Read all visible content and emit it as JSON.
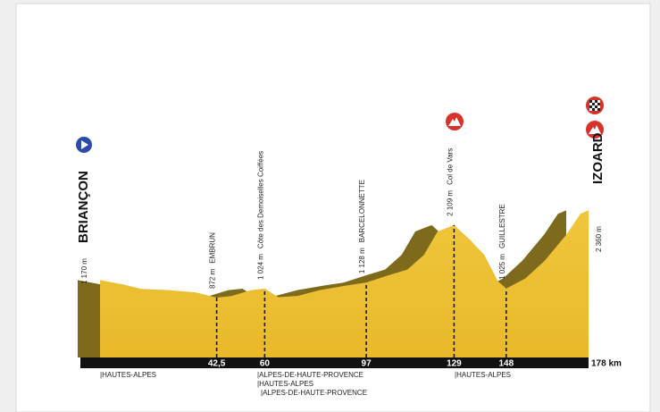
{
  "chart_data": {
    "type": "area",
    "color": "#f0c63c",
    "side_color": "#7d6a1c",
    "x": [
      0,
      8,
      15,
      25,
      35,
      42.5,
      48,
      55,
      60,
      65,
      72,
      80,
      90,
      97,
      105,
      112,
      118,
      123,
      129,
      135,
      140,
      145,
      148,
      155,
      162,
      170,
      175,
      178
    ],
    "values": [
      1170,
      1100,
      1020,
      1000,
      960,
      872,
      900,
      1000,
      1024,
      880,
      900,
      1000,
      1080,
      1128,
      1250,
      1350,
      1600,
      2000,
      2109,
      1850,
      1600,
      1150,
      1025,
      1200,
      1500,
      1950,
      2300,
      2360
    ],
    "xlim": [
      0,
      178
    ],
    "ylim": [
      -150,
      4500
    ],
    "xticks": [
      {
        "value": 42.5,
        "label": "42,5"
      },
      60,
      97,
      129,
      148,
      {
        "value": 178,
        "label": "178 km"
      }
    ],
    "waypoints": [
      {
        "name": "BRIANÇON",
        "altitude": 1170,
        "altitude_label": "1 170 m"
      },
      {
        "name": "EMBRUN",
        "altitude": 872,
        "altitude_label": "872 m"
      },
      {
        "name": "Côte des Demoiselles Coiffées",
        "altitude": 1024,
        "altitude_label": "1 024 m"
      },
      {
        "name": "BARCELONNETTE",
        "altitude": 1128,
        "altitude_label": "1 128 m"
      },
      {
        "name": "Col de Vars",
        "altitude": 2109,
        "altitude_label": "2 109 m"
      },
      {
        "name": "GUILLESTRE",
        "altitude": 1025,
        "altitude_label": "1 025 m"
      },
      {
        "name": "IZOARD",
        "altitude": 2360,
        "altitude_label": "2 360 m"
      }
    ],
    "regions": [
      "|HAUTES-ALPES",
      "|ALPES-DE-HAUTE-PROVENCE",
      "|HAUTES-ALPES",
      "|ALPES-DE-HAUTE-PROVENCE",
      "|HAUTES-ALPES"
    ]
  }
}
